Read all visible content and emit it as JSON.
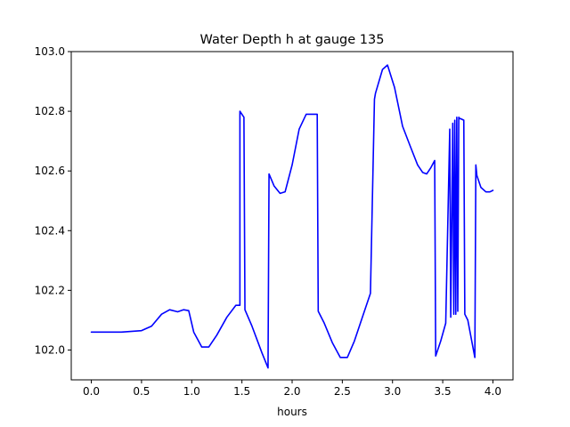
{
  "chart_data": {
    "type": "line",
    "title": "Water Depth h at gauge 135",
    "xlabel": "hours",
    "ylabel": "",
    "xlim": [
      -0.2,
      4.2
    ],
    "ylim": [
      101.9,
      103.0
    ],
    "x_ticks": [
      0.0,
      0.5,
      1.0,
      1.5,
      2.0,
      2.5,
      3.0,
      3.5,
      4.0
    ],
    "x_tick_labels": [
      "0.0",
      "0.5",
      "1.0",
      "1.5",
      "2.0",
      "2.5",
      "3.0",
      "3.5",
      "4.0"
    ],
    "y_ticks": [
      102.0,
      102.2,
      102.4,
      102.6,
      102.8,
      103.0
    ],
    "y_tick_labels": [
      "102.0",
      "102.2",
      "102.4",
      "102.6",
      "102.8",
      "103.0"
    ],
    "grid": false,
    "legend": "none",
    "series": [
      {
        "color": "#0000ff",
        "x": [
          0.0,
          0.3,
          0.5,
          0.6,
          0.7,
          0.78,
          0.86,
          0.92,
          0.97,
          1.02,
          1.1,
          1.17,
          1.25,
          1.35,
          1.44,
          1.48,
          1.48,
          1.52,
          1.53,
          1.6,
          1.7,
          1.76,
          1.77,
          1.82,
          1.88,
          1.93,
          2.0,
          2.07,
          2.14,
          2.2,
          2.25,
          2.26,
          2.32,
          2.4,
          2.48,
          2.55,
          2.62,
          2.7,
          2.78,
          2.82,
          2.83,
          2.9,
          2.95,
          3.02,
          3.1,
          3.18,
          3.25,
          3.3,
          3.34,
          3.38,
          3.42,
          3.43,
          3.48,
          3.53,
          3.57,
          3.58,
          3.6,
          3.61,
          3.62,
          3.63,
          3.64,
          3.65,
          3.66,
          3.67,
          3.68,
          3.71,
          3.72,
          3.75,
          3.82,
          3.83,
          3.84,
          3.88,
          3.93,
          3.97,
          4.0
        ],
        "y": [
          102.06,
          102.06,
          102.065,
          102.08,
          102.12,
          102.135,
          102.128,
          102.135,
          102.132,
          102.06,
          102.01,
          102.01,
          102.05,
          102.11,
          102.15,
          102.15,
          102.8,
          102.78,
          102.135,
          102.08,
          101.99,
          101.94,
          102.59,
          102.55,
          102.525,
          102.53,
          102.62,
          102.74,
          102.79,
          102.79,
          102.79,
          102.13,
          102.09,
          102.025,
          101.975,
          101.975,
          102.03,
          102.11,
          102.19,
          102.84,
          102.86,
          102.94,
          102.955,
          102.88,
          102.75,
          102.68,
          102.62,
          102.595,
          102.59,
          102.61,
          102.635,
          101.98,
          102.03,
          102.09,
          102.74,
          102.11,
          102.76,
          102.12,
          102.77,
          102.12,
          102.78,
          102.13,
          102.78,
          102.775,
          102.775,
          102.77,
          102.12,
          102.1,
          101.975,
          102.62,
          102.585,
          102.545,
          102.53,
          102.53,
          102.535
        ]
      }
    ]
  }
}
